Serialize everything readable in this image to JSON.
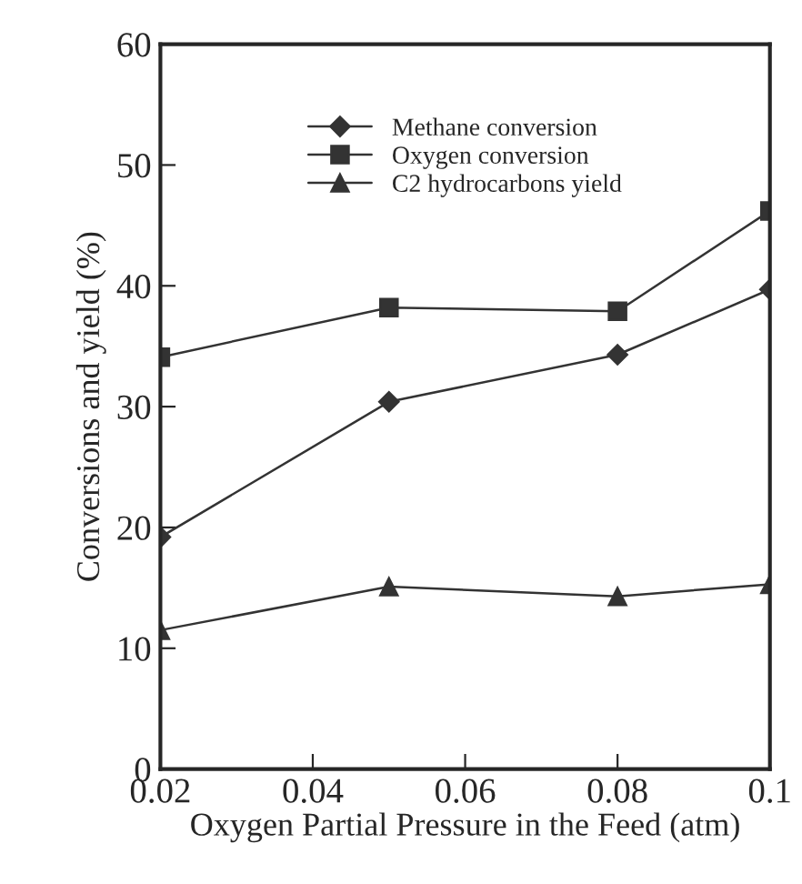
{
  "chart_data": {
    "type": "line",
    "xlabel": "Oxygen Partial Pressure in the Feed (atm)",
    "ylabel": "Conversions and yield (%)",
    "x": [
      0.02,
      0.05,
      0.08,
      0.1
    ],
    "xlim": [
      0.02,
      0.1
    ],
    "xticks": [
      0.02,
      0.04,
      0.06,
      0.08,
      0.1
    ],
    "ylim": [
      0,
      60
    ],
    "yticks": [
      0,
      10,
      20,
      30,
      40,
      50,
      60
    ],
    "grid": false,
    "legend": "top",
    "series": [
      {
        "name": "Methane conversion",
        "color": "#333333",
        "marker": "diamond",
        "values": [
          19.2,
          30.4,
          34.3,
          39.7
        ]
      },
      {
        "name": "Oxygen conversion",
        "color": "#333333",
        "marker": "square",
        "values": [
          34.1,
          38.2,
          37.9,
          46.2
        ]
      },
      {
        "name": "C2 hydrocarbons yield",
        "color": "#333333",
        "marker": "triangle",
        "values": [
          11.5,
          15.1,
          14.3,
          15.3
        ]
      }
    ]
  }
}
